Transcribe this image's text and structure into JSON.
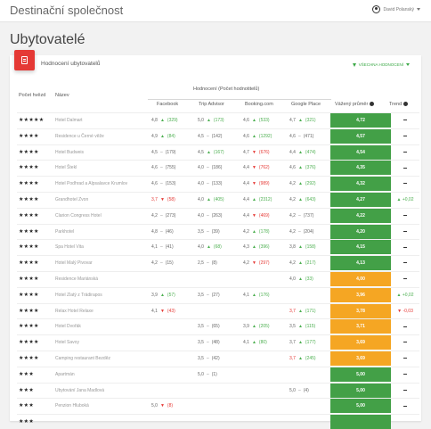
{
  "app": {
    "title": "Destinační společnost",
    "user": "David Polanský"
  },
  "page_title": "Ubytovatelé",
  "card": {
    "title": "Hodnocení ubytovatelů",
    "filter_label": "VŠECHNA HODNOCENÍ"
  },
  "headers": {
    "stars": "Počet hvězd",
    "name": "Název",
    "group": "Hodnocení (Počet hodnotitelů)",
    "facebook": "Facebook",
    "tripadvisor": "Trip Advisor",
    "booking": "Booking.com",
    "google": "Google Place",
    "weighted": "Vážený průměr",
    "trend": "Trend"
  },
  "colors": {
    "green": "#43a047",
    "orange": "#f5a623",
    "red": "#e53935"
  },
  "rows": [
    {
      "stars": "★★★★★",
      "name": "Hotel Dalmart",
      "fb": "4,8",
      "fbd": "up",
      "fbn": "(329)",
      "ta": "5,0",
      "tad": "up",
      "tan": "(173)",
      "bk": "4,6",
      "bkd": "up",
      "bkn": "(533)",
      "gp": "4,7",
      "gpd": "up",
      "gpn": "(321)",
      "w": "4,72",
      "wc": "green",
      "t": "",
      "td": "dash"
    },
    {
      "stars": "★★★★",
      "name": "Residence u Černé věže",
      "fb": "4,9",
      "fbd": "up",
      "fbn": "(84)",
      "ta": "4,5",
      "tad": "neutral",
      "tan": "(142)",
      "bk": "4,6",
      "bkd": "up",
      "bkn": "(1292)",
      "gp": "4,6",
      "gpd": "neutral",
      "gpn": "(471)",
      "w": "4,57",
      "wc": "green",
      "t": "",
      "td": "dash"
    },
    {
      "stars": "★★★★",
      "name": "Hotel Budweis",
      "fb": "4,5",
      "fbd": "neutral",
      "fbn": "(179)",
      "ta": "4,5",
      "tad": "up",
      "tan": "(167)",
      "bk": "4,7",
      "bkd": "down",
      "bkn": "(676)",
      "gp": "4,4",
      "gpd": "up",
      "gpn": "(474)",
      "w": "4,54",
      "wc": "green",
      "t": "",
      "td": "dash"
    },
    {
      "stars": "★★★★",
      "name": "Hotel Štekl",
      "fb": "4,6",
      "fbd": "neutral",
      "fbn": "(755)",
      "ta": "4,0",
      "tad": "neutral",
      "tan": "(186)",
      "bk": "4,4",
      "bkd": "down",
      "bkn": "(762)",
      "gp": "4,6",
      "gpd": "up",
      "gpn": "(376)",
      "w": "4,35",
      "wc": "green",
      "t": "",
      "td": "dash"
    },
    {
      "stars": "★★★★",
      "name": "Hotel Podhrad a Alpsalavce Krumlov",
      "fb": "4,6",
      "fbd": "neutral",
      "fbn": "(153)",
      "ta": "4,0",
      "tad": "neutral",
      "tan": "(133)",
      "bk": "4,4",
      "bkd": "down",
      "bkn": "(989)",
      "gp": "4,2",
      "gpd": "up",
      "gpn": "(292)",
      "w": "4,32",
      "wc": "green",
      "t": "",
      "td": "dash"
    },
    {
      "stars": "★★★★",
      "name": "Grandhotel Zvon",
      "fb": "3,7",
      "fbd": "down",
      "fbn": "(58)",
      "ta": "4,0",
      "tad": "up",
      "tan": "(405)",
      "bk": "4,4",
      "bkd": "up",
      "bkn": "(2312)",
      "gp": "4,2",
      "gpd": "up",
      "gpn": "(643)",
      "w": "4,27",
      "wc": "green",
      "t": "+0,02",
      "td": "up",
      "fbred": true
    },
    {
      "stars": "★★★★",
      "name": "Clarion Congress Hotel",
      "fb": "4,2",
      "fbd": "neutral",
      "fbn": "(273)",
      "ta": "4,0",
      "tad": "neutral",
      "tan": "(263)",
      "bk": "4,4",
      "bkd": "down",
      "bkn": "(469)",
      "gp": "4,2",
      "gpd": "neutral",
      "gpn": "(737)",
      "w": "4,22",
      "wc": "green",
      "t": "",
      "td": "dash"
    },
    {
      "stars": "★★★★",
      "name": "Parkhotel",
      "fb": "4,8",
      "fbd": "neutral",
      "fbn": "(46)",
      "ta": "3,5",
      "tad": "neutral",
      "tan": "(39)",
      "bk": "4,2",
      "bkd": "up",
      "bkn": "(178)",
      "gp": "4,2",
      "gpd": "neutral",
      "gpn": "(204)",
      "w": "4,20",
      "wc": "green",
      "t": "",
      "td": "dash"
    },
    {
      "stars": "★★★★",
      "name": "Spa Hotel Vita",
      "fb": "4,1",
      "fbd": "neutral",
      "fbn": "(41)",
      "ta": "4,0",
      "tad": "up",
      "tan": "(68)",
      "bk": "4,3",
      "bkd": "up",
      "bkn": "(396)",
      "gp": "3,8",
      "gpd": "up",
      "gpn": "(158)",
      "w": "4,15",
      "wc": "green",
      "t": "",
      "td": "dash"
    },
    {
      "stars": "★★★★",
      "name": "Hotel Malý Pivovar",
      "fb": "4,2",
      "fbd": "neutral",
      "fbn": "(15)",
      "ta": "2,5",
      "tad": "neutral",
      "tan": "(8)",
      "bk": "4,2",
      "bkd": "down",
      "bkn": "(297)",
      "gp": "4,2",
      "gpd": "up",
      "gpn": "(217)",
      "w": "4,13",
      "wc": "green",
      "t": "",
      "td": "dash"
    },
    {
      "stars": "★★★★",
      "name": "Residence Mariánská",
      "fb": "",
      "fbd": "",
      "fbn": "",
      "ta": "",
      "tad": "",
      "tan": "",
      "bk": "",
      "bkd": "",
      "bkn": "",
      "gp": "4,0",
      "gpd": "up",
      "gpn": "(33)",
      "w": "4,00",
      "wc": "orange",
      "t": "",
      "td": "dash"
    },
    {
      "stars": "★★★★",
      "name": "Hotel Zlatý z Trädirapos",
      "fb": "3,9",
      "fbd": "up",
      "fbn": "(57)",
      "ta": "3,5",
      "tad": "neutral",
      "tan": "(27)",
      "bk": "4,1",
      "bkd": "up",
      "bkn": "(176)",
      "gp": "",
      "gpd": "",
      "gpn": "",
      "w": "3,96",
      "wc": "orange",
      "t": "+0,02",
      "td": "up"
    },
    {
      "stars": "★★★★",
      "name": "Relax Hotel Relaxe",
      "fb": "4,1",
      "fbd": "down",
      "fbn": "(43)",
      "ta": "",
      "tad": "",
      "tan": "",
      "bk": "",
      "bkd": "",
      "bkn": "",
      "gp": "3,7",
      "gpd": "up",
      "gpn": "(171)",
      "w": "3,78",
      "wc": "orange",
      "t": "-0,03",
      "td": "down",
      "gpred": true
    },
    {
      "stars": "★★★★",
      "name": "Hotel Dvořák",
      "fb": "",
      "fbd": "",
      "fbn": "",
      "ta": "3,5",
      "tad": "neutral",
      "tan": "(65)",
      "bk": "3,9",
      "bkd": "up",
      "bkn": "(205)",
      "gp": "3,5",
      "gpd": "up",
      "gpn": "(115)",
      "w": "3,71",
      "wc": "orange",
      "t": "",
      "td": "dash"
    },
    {
      "stars": "★★★★",
      "name": "Hotel Savoy",
      "fb": "",
      "fbd": "",
      "fbn": "",
      "ta": "3,5",
      "tad": "neutral",
      "tan": "(48)",
      "bk": "4,1",
      "bkd": "up",
      "bkn": "(80)",
      "gp": "3,7",
      "gpd": "up",
      "gpn": "(177)",
      "w": "3,69",
      "wc": "orange",
      "t": "",
      "td": "dash"
    },
    {
      "stars": "★★★★",
      "name": "Camping restaurant Bezděz",
      "fb": "",
      "fbd": "",
      "fbn": "",
      "ta": "3,5",
      "tad": "neutral",
      "tan": "(42)",
      "bk": "",
      "bkd": "",
      "bkn": "",
      "gp": "3,7",
      "gpd": "up",
      "gpn": "(245)",
      "w": "3,69",
      "wc": "orange",
      "t": "",
      "td": "dash",
      "gpred": true
    },
    {
      "stars": "★★★",
      "name": "Apartmán",
      "fb": "",
      "fbd": "",
      "fbn": "",
      "ta": "5,0",
      "tad": "neutral",
      "tan": "(1)",
      "bk": "",
      "bkd": "",
      "bkn": "",
      "gp": "",
      "gpd": "",
      "gpn": "",
      "w": "5,00",
      "wc": "green",
      "t": "",
      "td": "dash"
    },
    {
      "stars": "★★★",
      "name": "Ubytování Jana Madlová",
      "fb": "",
      "fbd": "",
      "fbn": "",
      "ta": "",
      "tad": "",
      "tan": "",
      "bk": "",
      "bkd": "",
      "bkn": "",
      "gp": "5,0",
      "gpd": "neutral",
      "gpn": "(4)",
      "w": "5,00",
      "wc": "green",
      "t": "",
      "td": "dash"
    },
    {
      "stars": "★★★",
      "name": "Penzion Hluboká",
      "fb": "5,0",
      "fbd": "down",
      "fbn": "(8)",
      "ta": "",
      "tad": "",
      "tan": "",
      "bk": "",
      "bkd": "",
      "bkn": "",
      "gp": "",
      "gpd": "",
      "gpn": "",
      "w": "5,00",
      "wc": "green",
      "t": "",
      "td": "dash"
    },
    {
      "stars": "★★★",
      "name": "",
      "fb": "",
      "fbd": "",
      "fbn": "",
      "ta": "",
      "tad": "",
      "tan": "",
      "bk": "",
      "bkd": "",
      "bkn": "",
      "gp": "",
      "gpd": "",
      "gpn": "",
      "w": "",
      "wc": "green",
      "t": "",
      "td": ""
    }
  ]
}
